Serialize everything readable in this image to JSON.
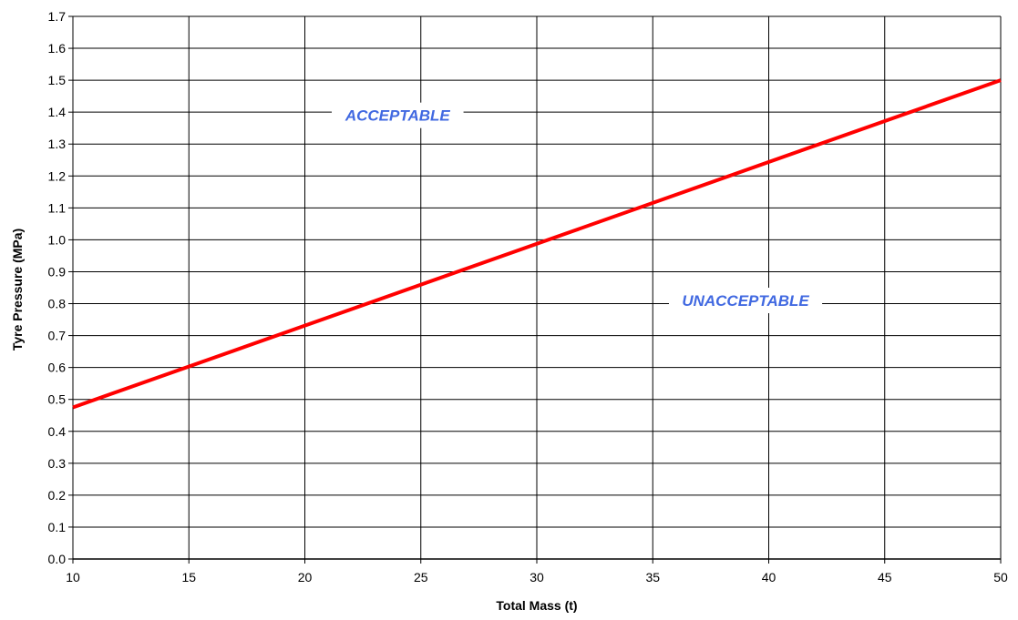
{
  "chart_data": {
    "type": "line",
    "title": "",
    "xlabel": "Total Mass (t)",
    "ylabel": "Tyre Pressure (MPa)",
    "xlim": [
      10,
      50
    ],
    "ylim": [
      0.0,
      1.7
    ],
    "x_ticks": [
      10,
      15,
      20,
      25,
      30,
      35,
      40,
      45,
      50
    ],
    "x_tick_labels": [
      "10",
      "15",
      "20",
      "25",
      "30",
      "35",
      "40",
      "45",
      "50"
    ],
    "y_ticks": [
      0.0,
      0.1,
      0.2,
      0.3,
      0.4,
      0.5,
      0.6,
      0.7,
      0.8,
      0.9,
      1.0,
      1.1,
      1.2,
      1.3,
      1.4,
      1.5,
      1.6,
      1.7
    ],
    "y_tick_labels": [
      "0.0",
      "0.1",
      "0.2",
      "0.3",
      "0.4",
      "0.5",
      "0.6",
      "0.7",
      "0.8",
      "0.9",
      "1.0",
      "1.1",
      "1.2",
      "1.3",
      "1.4",
      "1.5",
      "1.6",
      "1.7"
    ],
    "grid": true,
    "legend": "none",
    "series": [
      {
        "color": "#ff0000",
        "x": [
          10,
          50
        ],
        "y": [
          0.475,
          1.5
        ]
      }
    ],
    "annotations": [
      {
        "text": "ACCEPTABLE",
        "x": 24,
        "y": 1.39
      },
      {
        "text": "UNACCEPTABLE",
        "x": 39,
        "y": 0.81
      }
    ],
    "annotation_color": "#4169e1"
  }
}
